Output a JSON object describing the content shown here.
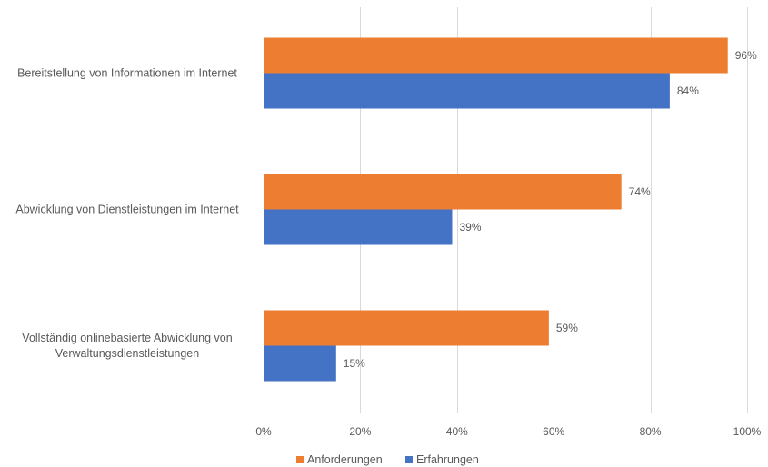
{
  "chart_data": {
    "type": "bar",
    "orientation": "horizontal",
    "categories": [
      [
        "Bereitstellung von Informationen im Internet"
      ],
      [
        "Abwicklung von Dienstleistungen im Internet"
      ],
      [
        "Vollständig onlinebasierte Abwicklung von",
        "Verwaltungsdienstleistungen"
      ]
    ],
    "series": [
      {
        "name": "Anforderungen",
        "color": "#ED7D31",
        "values": [
          96,
          74,
          59
        ],
        "labels": [
          "96%",
          "74%",
          "59%"
        ]
      },
      {
        "name": "Erfahrungen",
        "color": "#4472C4",
        "values": [
          84,
          39,
          15
        ],
        "labels": [
          "84%",
          "39%",
          "15%"
        ]
      }
    ],
    "xlim": [
      0,
      100
    ],
    "xticks": [
      0,
      20,
      40,
      60,
      80,
      100
    ],
    "xtick_labels": [
      "0%",
      "20%",
      "40%",
      "60%",
      "80%",
      "100%"
    ],
    "grid": true,
    "gridline_color": "#d9d9d9",
    "legend_position": "bottom",
    "title": "",
    "xlabel": "",
    "ylabel": ""
  }
}
